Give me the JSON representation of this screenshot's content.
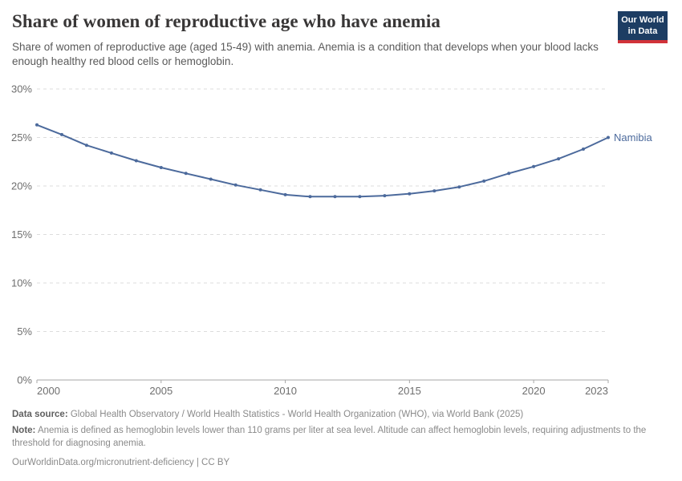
{
  "header": {
    "title": "Share of women of reproductive age who have anemia",
    "subtitle": "Share of women of reproductive age (aged 15-49) with anemia. Anemia is a condition that develops when your blood lacks enough healthy red blood cells or hemoglobin.",
    "logo": {
      "line1": "Our World",
      "line2": "in Data",
      "bg_color": "#1d3d63",
      "stripe_color": "#d13239"
    }
  },
  "chart_data": {
    "type": "line",
    "title": "Share of women of reproductive age who have anemia",
    "xlabel": "",
    "ylabel": "",
    "xlim": [
      2000,
      2023
    ],
    "ylim": [
      0,
      30
    ],
    "x_ticks": [
      2000,
      2005,
      2010,
      2015,
      2020,
      2023
    ],
    "y_ticks": [
      0,
      5,
      10,
      15,
      20,
      25,
      30
    ],
    "y_tick_suffix": "%",
    "grid": "horizontal-dashed",
    "legend_position": "end-of-line-label",
    "axis_color": "#a7a7a7",
    "grid_color": "#dcdcdc",
    "series": [
      {
        "name": "Namibia",
        "color": "#4c6a9c",
        "x": [
          2000,
          2001,
          2002,
          2003,
          2004,
          2005,
          2006,
          2007,
          2008,
          2009,
          2010,
          2011,
          2012,
          2013,
          2014,
          2015,
          2016,
          2017,
          2018,
          2019,
          2020,
          2021,
          2022,
          2023
        ],
        "values": [
          26.3,
          25.3,
          24.2,
          23.4,
          22.6,
          21.9,
          21.3,
          20.7,
          20.1,
          19.6,
          19.1,
          18.9,
          18.9,
          18.9,
          19.0,
          19.2,
          19.5,
          19.9,
          20.5,
          21.3,
          22.0,
          22.8,
          23.8,
          25.0
        ]
      }
    ]
  },
  "footer": {
    "data_source_label": "Data source:",
    "data_source_text": " Global Health Observatory / World Health Statistics - World Health Organization (WHO), via World Bank (2025)",
    "note_label": "Note:",
    "note_text": " Anemia is defined as hemoglobin levels lower than 110 grams per liter at sea level. Altitude can affect hemoglobin levels, requiring adjustments to the threshold for diagnosing anemia.",
    "url_line": "OurWorldinData.org/micronutrient-deficiency | CC BY"
  }
}
